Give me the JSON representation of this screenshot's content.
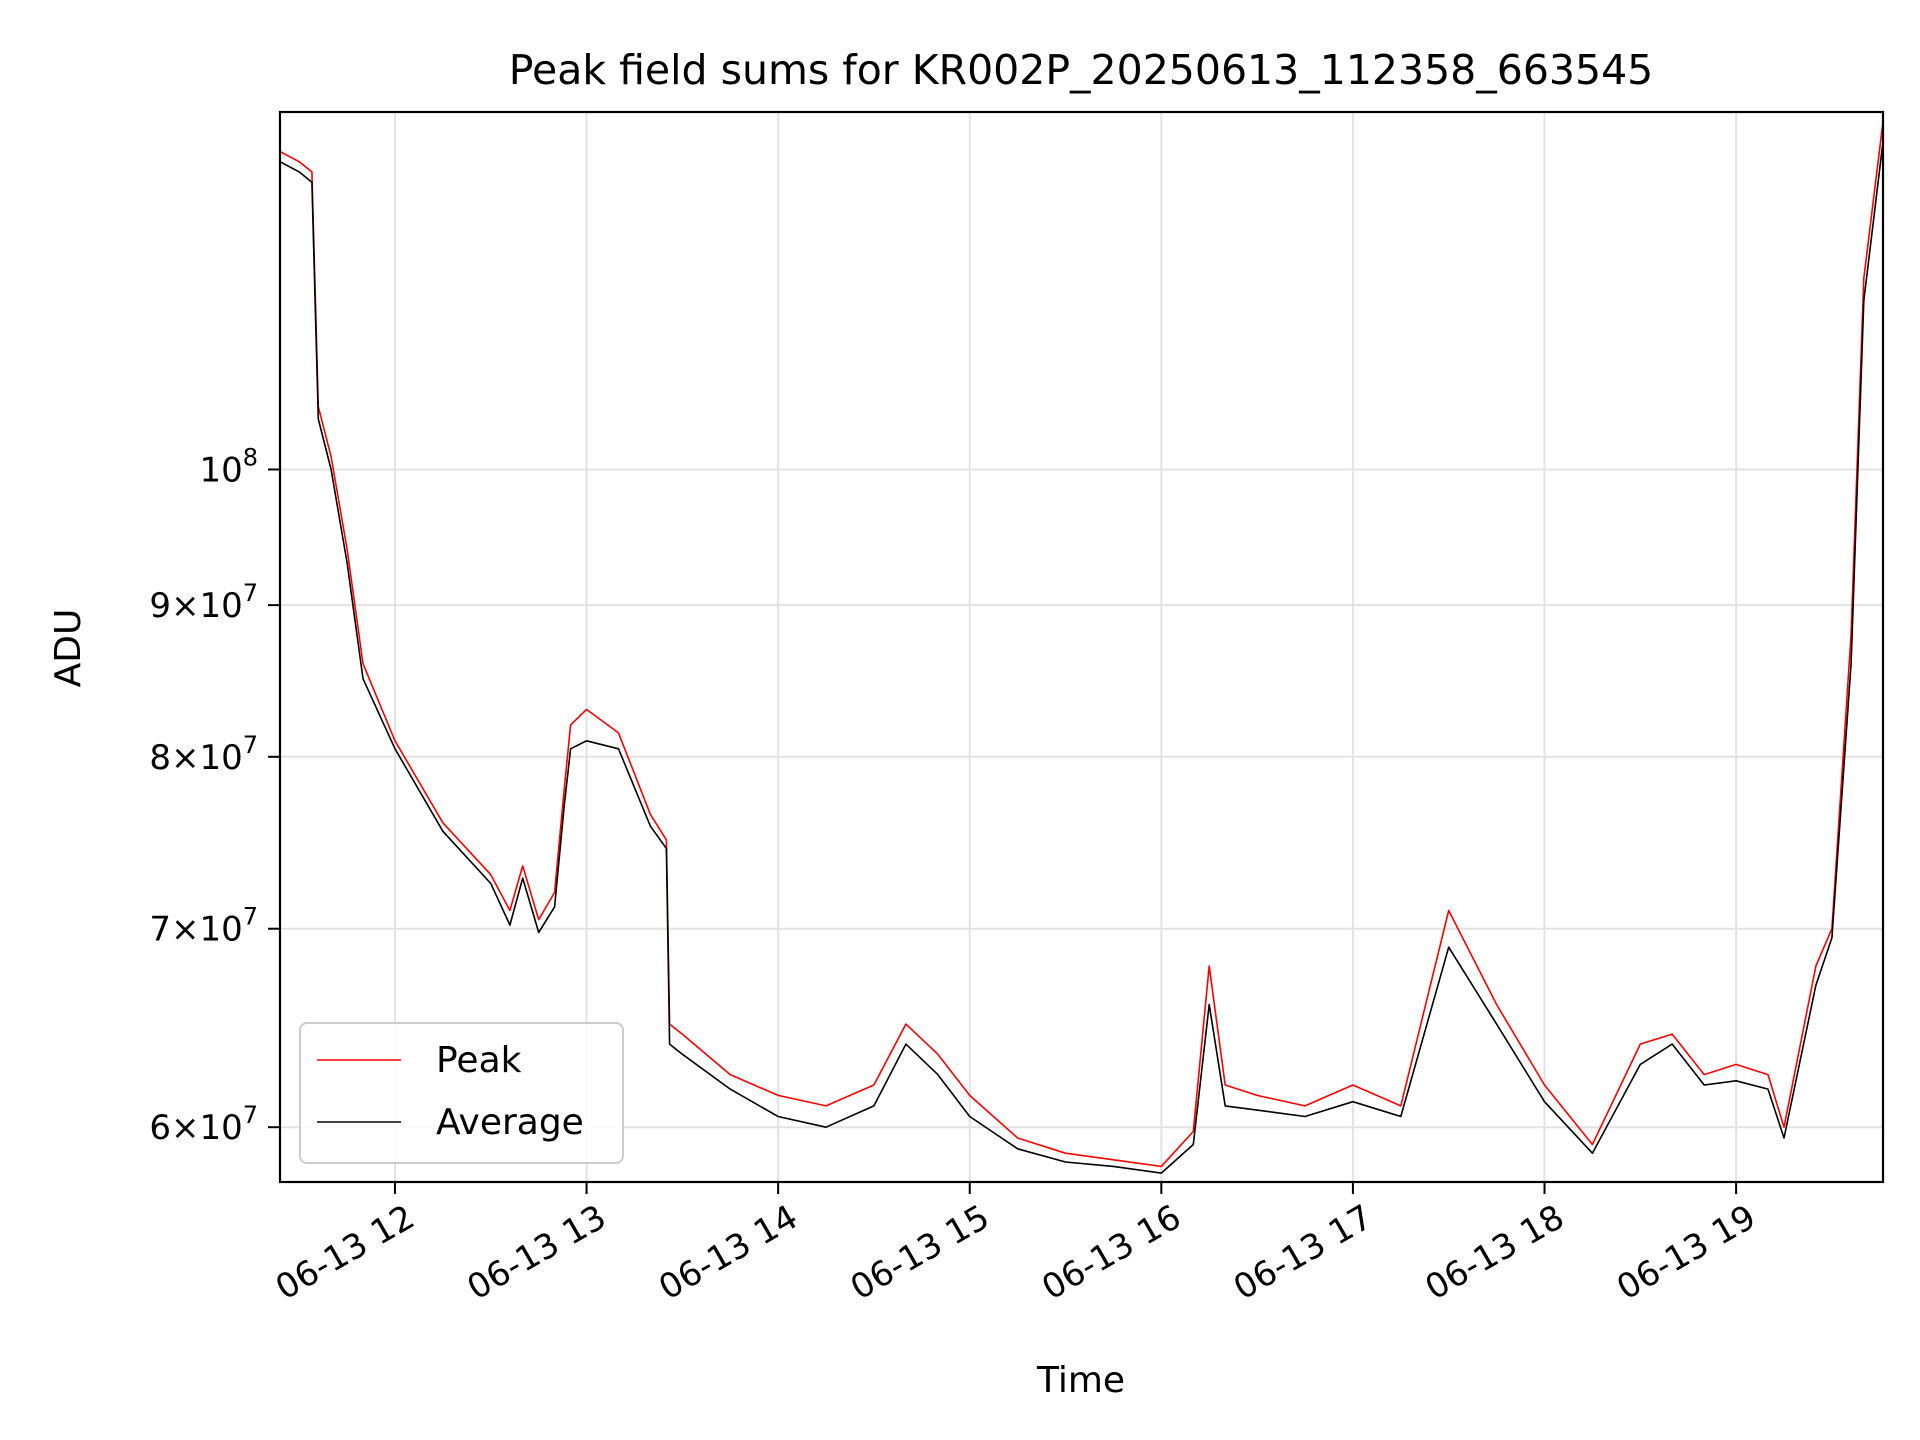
{
  "chart_data": {
    "type": "line",
    "title": "Peak field sums for KR002P_20250613_112358_663545",
    "xlabel": "Time",
    "ylabel": "ADU",
    "yscale": "log",
    "grid": true,
    "legend_position": "lower-left",
    "x_tick_labels": [
      "06-13 12",
      "06-13 13",
      "06-13 14",
      "06-13 15",
      "06-13 16",
      "06-13 17",
      "06-13 18",
      "06-13 19"
    ],
    "x_ticks": [
      "2025-06-13 12:00",
      "2025-06-13 13:00",
      "2025-06-13 14:00",
      "2025-06-13 15:00",
      "2025-06-13 16:00",
      "2025-06-13 17:00",
      "2025-06-13 18:00",
      "2025-06-13 19:00"
    ],
    "xlim": [
      "2025-06-13 11:24",
      "2025-06-13 19:46"
    ],
    "y_ticks": [
      {
        "value": 60000000,
        "mantissa": "6",
        "exponent": "7"
      },
      {
        "value": 70000000,
        "mantissa": "7",
        "exponent": "7"
      },
      {
        "value": 80000000,
        "mantissa": "8",
        "exponent": "7"
      },
      {
        "value": 90000000,
        "mantissa": "9",
        "exponent": "7"
      },
      {
        "value": 100000000,
        "mantissa": "",
        "exponent": "8"
      }
    ],
    "ylim": [
      57500000,
      132000000
    ],
    "series": [
      {
        "name": "Peak",
        "color": "#ff0000",
        "x": [
          "2025-06-13 11:24",
          "2025-06-13 11:30",
          "2025-06-13 11:32",
          "2025-06-13 11:34",
          "2025-06-13 11:36",
          "2025-06-13 11:40",
          "2025-06-13 11:45",
          "2025-06-13 11:50",
          "2025-06-13 12:00",
          "2025-06-13 12:15",
          "2025-06-13 12:30",
          "2025-06-13 12:36",
          "2025-06-13 12:40",
          "2025-06-13 12:45",
          "2025-06-13 12:50",
          "2025-06-13 12:53",
          "2025-06-13 12:55",
          "2025-06-13 13:00",
          "2025-06-13 13:10",
          "2025-06-13 13:20",
          "2025-06-13 13:25",
          "2025-06-13 13:26",
          "2025-06-13 13:30",
          "2025-06-13 13:45",
          "2025-06-13 14:00",
          "2025-06-13 14:15",
          "2025-06-13 14:30",
          "2025-06-13 14:40",
          "2025-06-13 14:50",
          "2025-06-13 15:00",
          "2025-06-13 15:15",
          "2025-06-13 15:30",
          "2025-06-13 15:45",
          "2025-06-13 16:00",
          "2025-06-13 16:10",
          "2025-06-13 16:15",
          "2025-06-13 16:20",
          "2025-06-13 16:30",
          "2025-06-13 16:45",
          "2025-06-13 17:00",
          "2025-06-13 17:15",
          "2025-06-13 17:30",
          "2025-06-13 17:45",
          "2025-06-13 18:00",
          "2025-06-13 18:15",
          "2025-06-13 18:30",
          "2025-06-13 18:40",
          "2025-06-13 18:50",
          "2025-06-13 19:00",
          "2025-06-13 19:10",
          "2025-06-13 19:15",
          "2025-06-13 19:25",
          "2025-06-13 19:30",
          "2025-06-13 19:36",
          "2025-06-13 19:40",
          "2025-06-13 19:46"
        ],
        "values": [
          128000000,
          127000000,
          126500000,
          126000000,
          105000000,
          101000000,
          94000000,
          86000000,
          81000000,
          76000000,
          73000000,
          71000000,
          73500000,
          70500000,
          72000000,
          78000000,
          82000000,
          83000000,
          81500000,
          76500000,
          75000000,
          65000000,
          64500000,
          62500000,
          61500000,
          61000000,
          62000000,
          65000000,
          63500000,
          61500000,
          59500000,
          58800000,
          58500000,
          58200000,
          59800000,
          68000000,
          62000000,
          61500000,
          61000000,
          62000000,
          61000000,
          71000000,
          66000000,
          62000000,
          59200000,
          64000000,
          64500000,
          62500000,
          63000000,
          62500000,
          60000000,
          68000000,
          70000000,
          88000000,
          116000000,
          131000000
        ]
      },
      {
        "name": "Average",
        "color": "#000000",
        "x": [
          "2025-06-13 11:24",
          "2025-06-13 11:30",
          "2025-06-13 11:32",
          "2025-06-13 11:34",
          "2025-06-13 11:36",
          "2025-06-13 11:40",
          "2025-06-13 11:45",
          "2025-06-13 11:50",
          "2025-06-13 12:00",
          "2025-06-13 12:15",
          "2025-06-13 12:30",
          "2025-06-13 12:36",
          "2025-06-13 12:40",
          "2025-06-13 12:45",
          "2025-06-13 12:50",
          "2025-06-13 12:53",
          "2025-06-13 12:55",
          "2025-06-13 13:00",
          "2025-06-13 13:10",
          "2025-06-13 13:20",
          "2025-06-13 13:25",
          "2025-06-13 13:26",
          "2025-06-13 13:30",
          "2025-06-13 13:45",
          "2025-06-13 14:00",
          "2025-06-13 14:15",
          "2025-06-13 14:30",
          "2025-06-13 14:40",
          "2025-06-13 14:50",
          "2025-06-13 15:00",
          "2025-06-13 15:15",
          "2025-06-13 15:30",
          "2025-06-13 15:45",
          "2025-06-13 16:00",
          "2025-06-13 16:10",
          "2025-06-13 16:15",
          "2025-06-13 16:20",
          "2025-06-13 16:30",
          "2025-06-13 16:45",
          "2025-06-13 17:00",
          "2025-06-13 17:15",
          "2025-06-13 17:30",
          "2025-06-13 17:45",
          "2025-06-13 18:00",
          "2025-06-13 18:15",
          "2025-06-13 18:30",
          "2025-06-13 18:40",
          "2025-06-13 18:50",
          "2025-06-13 19:00",
          "2025-06-13 19:10",
          "2025-06-13 19:15",
          "2025-06-13 19:25",
          "2025-06-13 19:30",
          "2025-06-13 19:36",
          "2025-06-13 19:40",
          "2025-06-13 19:46"
        ],
        "values": [
          127000000,
          126000000,
          125500000,
          125000000,
          104000000,
          100000000,
          93000000,
          85000000,
          80500000,
          75500000,
          72500000,
          70200000,
          72800000,
          69800000,
          71200000,
          77000000,
          80500000,
          81000000,
          80500000,
          75800000,
          74500000,
          64000000,
          63500000,
          61800000,
          60500000,
          60000000,
          61000000,
          64000000,
          62500000,
          60500000,
          59000000,
          58400000,
          58200000,
          57900000,
          59200000,
          66000000,
          61000000,
          60800000,
          60500000,
          61200000,
          60500000,
          69000000,
          65000000,
          61200000,
          58800000,
          63000000,
          64000000,
          62000000,
          62200000,
          61800000,
          59500000,
          67000000,
          69500000,
          86000000,
          114000000,
          129000000
        ]
      }
    ]
  }
}
